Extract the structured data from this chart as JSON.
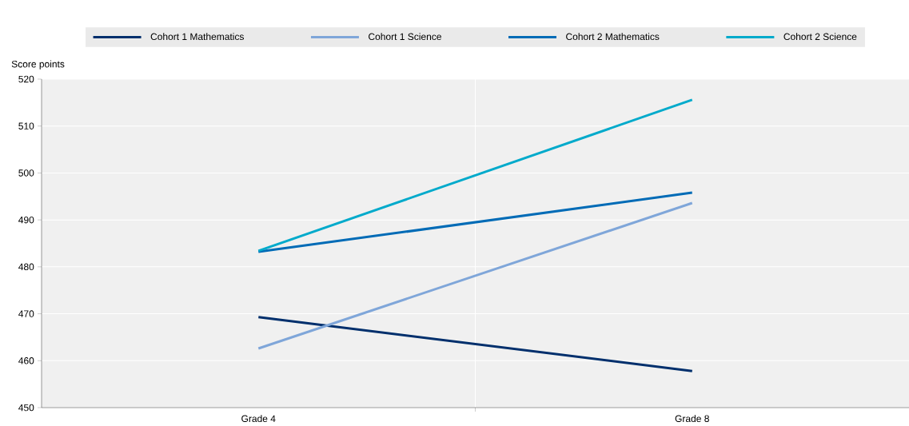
{
  "chart_data": {
    "type": "line",
    "ylabel": "Score points",
    "categories": [
      "Grade 4",
      "Grade 8"
    ],
    "series": [
      {
        "name": "Cohort 1 Mathematics",
        "color": "#002f6c",
        "values": [
          469.3,
          457.8
        ]
      },
      {
        "name": "Cohort 1 Science",
        "color": "#7fa6d9",
        "values": [
          462.6,
          493.6
        ]
      },
      {
        "name": "Cohort 2 Mathematics",
        "color": "#006bb6",
        "values": [
          483.2,
          495.8
        ]
      },
      {
        "name": "Cohort 2 Science",
        "color": "#00aacb",
        "values": [
          483.4,
          515.6
        ]
      }
    ],
    "ylim": [
      450,
      520
    ],
    "yticks": [
      450,
      460,
      470,
      480,
      490,
      500,
      510,
      520
    ],
    "grid": true,
    "legend": "top",
    "marker": "none",
    "line_style": "solid"
  }
}
